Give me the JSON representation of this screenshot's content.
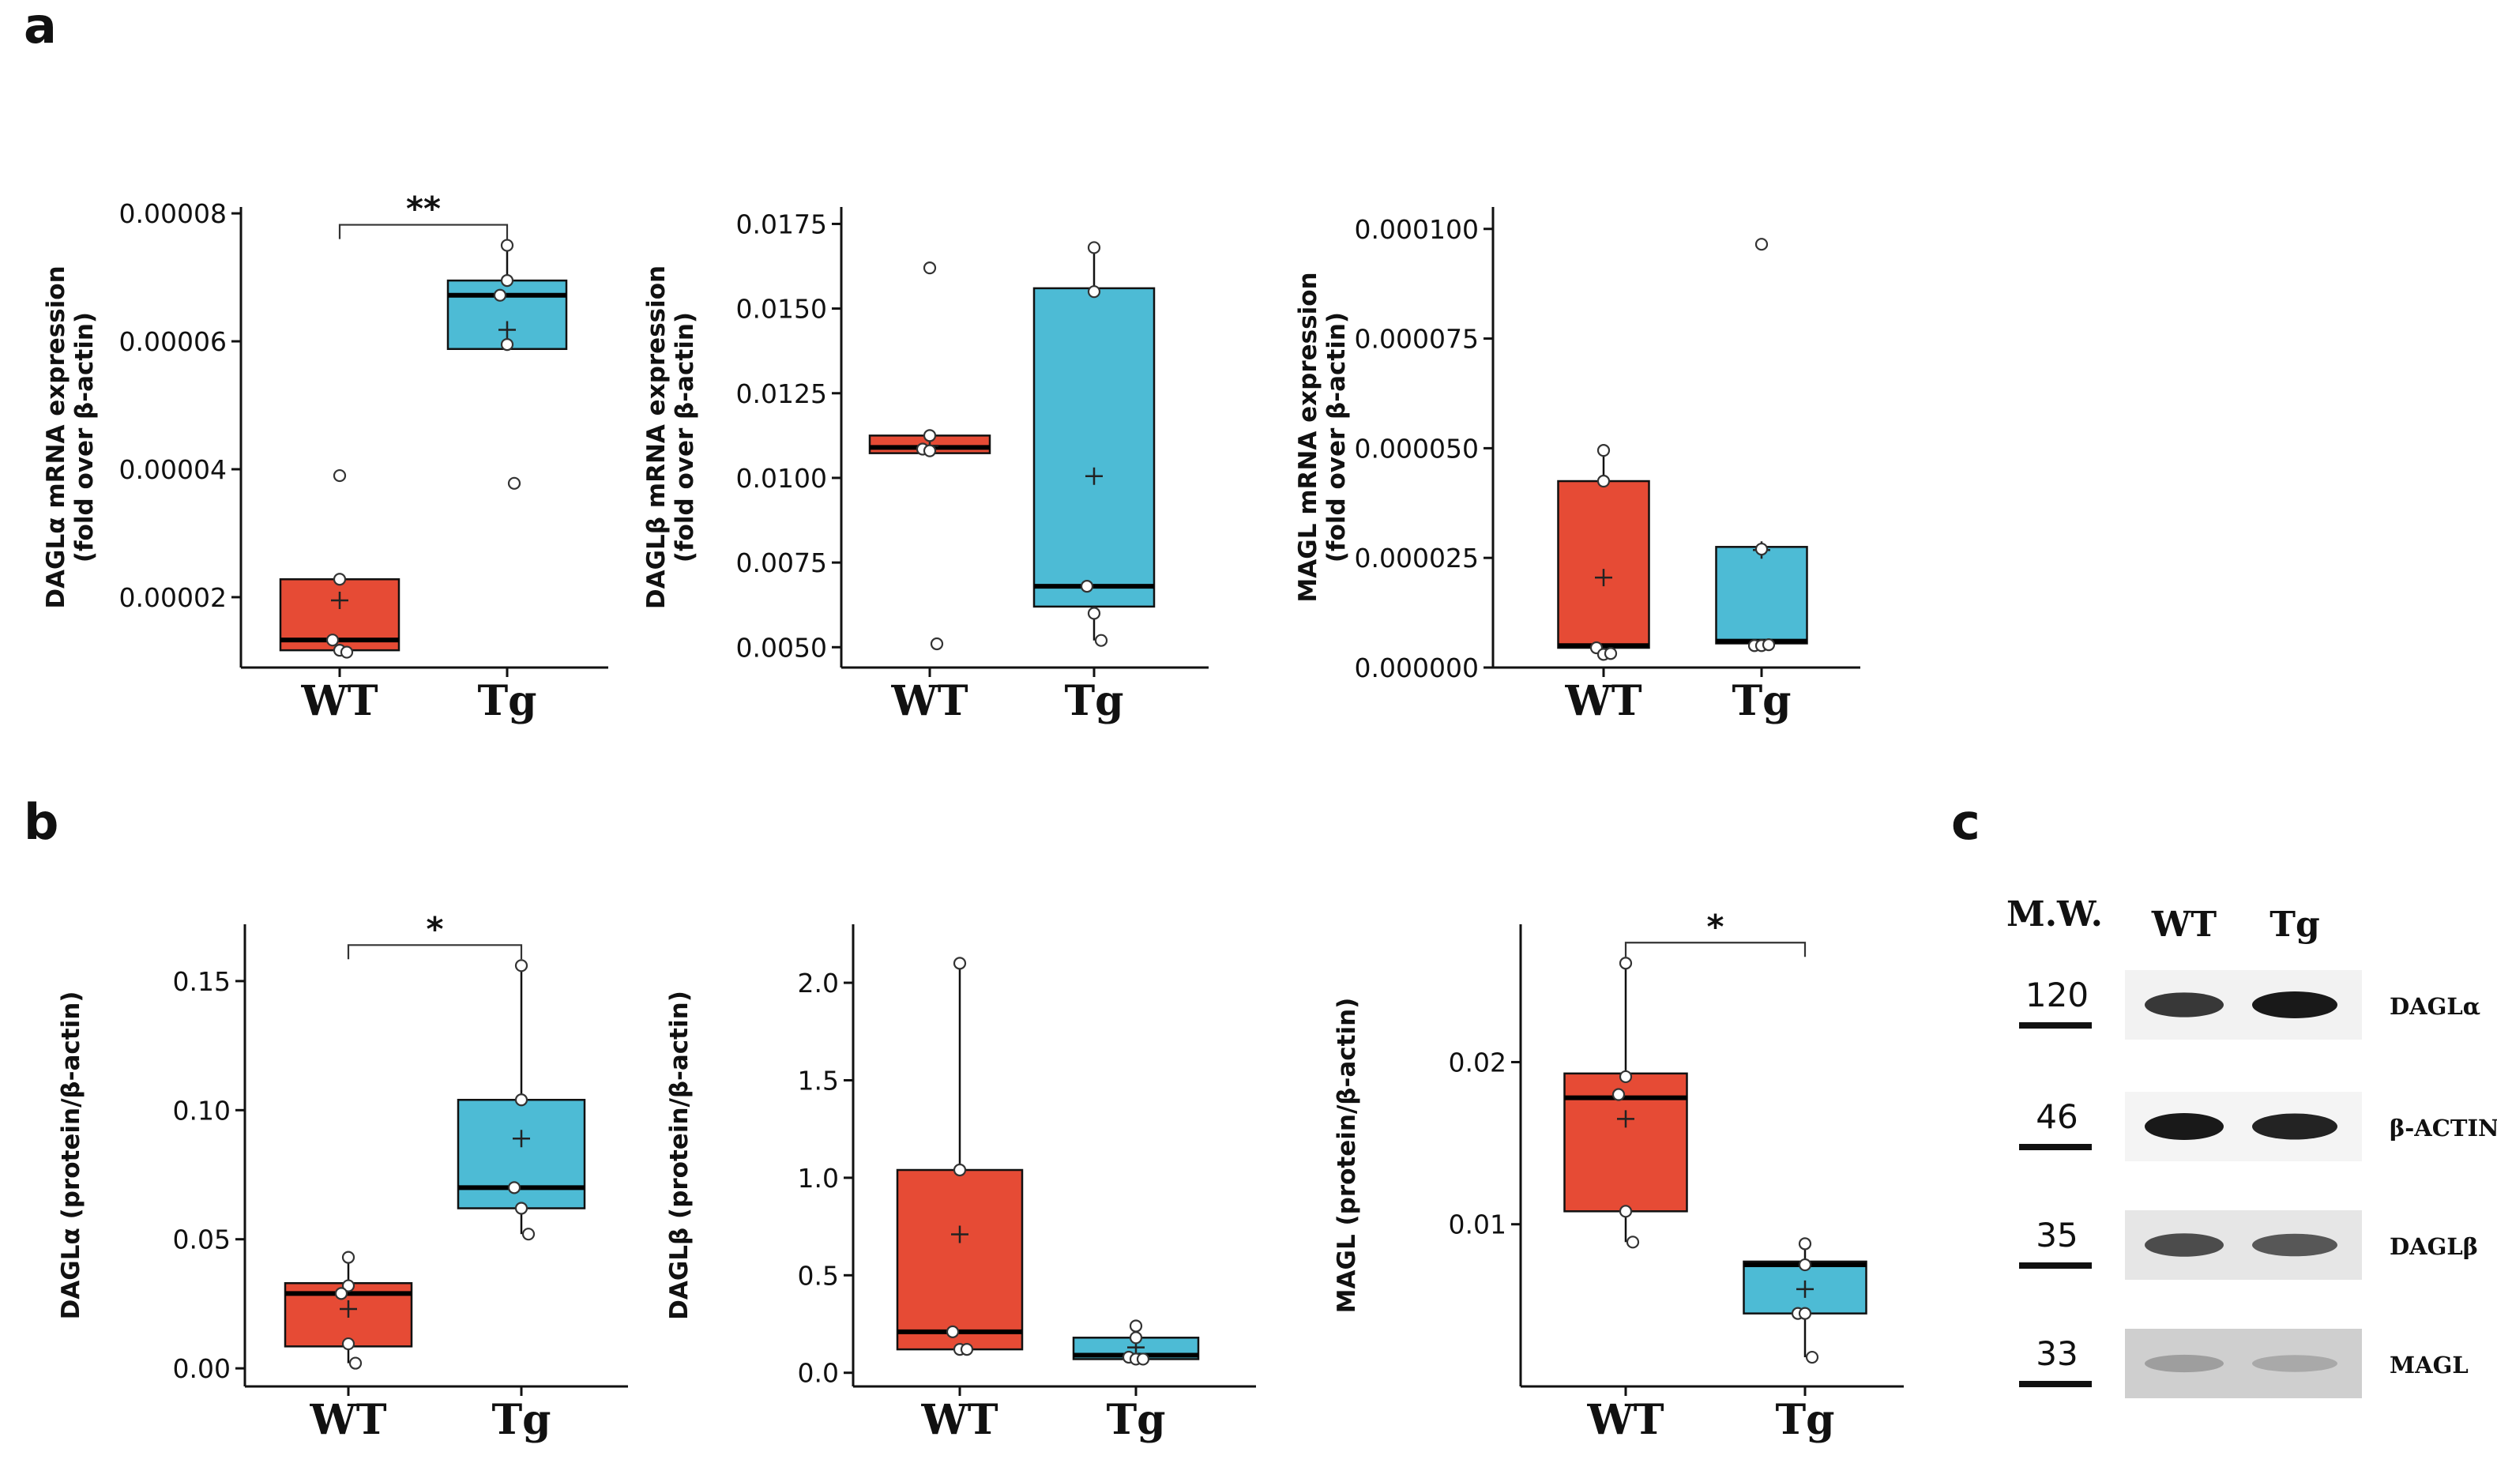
{
  "panel_labels": {
    "a": "a",
    "b": "b",
    "c": "c"
  },
  "colors": {
    "wt": "#E64B35",
    "tg": "#4DBBD5",
    "axis": "#111111"
  },
  "chart_data": [
    {
      "type": "box",
      "id": "a1",
      "ylabel_line1": "DAGLα  mRNA  expression",
      "ylabel_line2": "(fold over β-actin)",
      "categories": [
        "WT",
        "Tg"
      ],
      "ylim": [
        9e-06,
        8.1e-05
      ],
      "yticks": [
        2e-05,
        4e-05,
        6e-05,
        8e-05
      ],
      "ytick_labels": [
        "0.00002",
        "0.00004",
        "0.00006",
        "0.00008"
      ],
      "boxes": [
        {
          "group": "WT",
          "q1": 1.17e-05,
          "median": 1.33e-05,
          "q3": 2.28e-05,
          "mean": 1.95e-05,
          "whisker_low": 1.17e-05,
          "whisker_high": 2.28e-05,
          "points": [
            3.9e-05,
            2.28e-05,
            1.33e-05,
            1.17e-05,
            1.14e-05
          ]
        },
        {
          "group": "Tg",
          "q1": 5.88e-05,
          "median": 6.72e-05,
          "q3": 6.95e-05,
          "mean": 6.18e-05,
          "whisker_low": 5.88e-05,
          "whisker_high": 7.5e-05,
          "points": [
            7.5e-05,
            6.95e-05,
            6.72e-05,
            5.95e-05,
            3.78e-05
          ]
        }
      ],
      "significance": "**"
    },
    {
      "type": "box",
      "id": "a2",
      "ylabel_line1": "DAGLβ  mRNA  expression",
      "ylabel_line2": "(fold over β-actin)",
      "categories": [
        "WT",
        "Tg"
      ],
      "ylim": [
        0.0044,
        0.018
      ],
      "yticks": [
        0.005,
        0.0075,
        0.01,
        0.0125,
        0.015,
        0.0175
      ],
      "ytick_labels": [
        "0.0050",
        "0.0075",
        "0.0100",
        "0.0125",
        "0.0150",
        "0.0175"
      ],
      "boxes": [
        {
          "group": "WT",
          "q1": 0.01073,
          "median": 0.0109,
          "q3": 0.01125,
          "mean": 0.01095,
          "whisker_low": 0.01073,
          "whisker_high": 0.01125,
          "points": [
            0.0162,
            0.01125,
            0.01085,
            0.0108,
            0.0051
          ]
        },
        {
          "group": "Tg",
          "q1": 0.0062,
          "median": 0.0068,
          "q3": 0.0156,
          "mean": 0.01005,
          "whisker_low": 0.0052,
          "whisker_high": 0.0168,
          "points": [
            0.0168,
            0.0155,
            0.0068,
            0.006,
            0.0052
          ]
        }
      ],
      "significance": ""
    },
    {
      "type": "box",
      "id": "a3",
      "ylabel_line1": "MAGL  mRNA  expression",
      "ylabel_line2": "(fold over β-actin)",
      "categories": [
        "WT",
        "Tg"
      ],
      "ylim": [
        0.0,
        0.000105
      ],
      "yticks": [
        0.0,
        2.5e-05,
        5e-05,
        7.5e-05,
        0.0001
      ],
      "ytick_labels": [
        "0.000000",
        "0.000025",
        "0.000050",
        "0.000075",
        "0.000100"
      ],
      "boxes": [
        {
          "group": "WT",
          "q1": 4.5e-06,
          "median": 5e-06,
          "q3": 4.25e-05,
          "mean": 2.05e-05,
          "whisker_low": 3e-06,
          "whisker_high": 4.95e-05,
          "points": [
            4.95e-05,
            4.25e-05,
            4.5e-06,
            3e-06,
            3.2e-06
          ]
        },
        {
          "group": "Tg",
          "q1": 5.5e-06,
          "median": 6e-06,
          "q3": 2.75e-05,
          "mean": 2.68e-05,
          "whisker_low": 5e-06,
          "whisker_high": 2.75e-05,
          "points": [
            9.65e-05,
            2.7e-05,
            5e-06,
            5e-06,
            5.2e-06
          ]
        }
      ],
      "significance": ""
    },
    {
      "type": "box",
      "id": "b1",
      "ylabel_line1": "DAGLα  (protein/β-actin)",
      "ylabel_line2": "",
      "categories": [
        "WT",
        "Tg"
      ],
      "ylim": [
        -0.007,
        0.172
      ],
      "yticks": [
        0.0,
        0.05,
        0.1,
        0.15
      ],
      "ytick_labels": [
        "0.00",
        "0.05",
        "0.10",
        "0.15"
      ],
      "boxes": [
        {
          "group": "WT",
          "q1": 0.0085,
          "median": 0.029,
          "q3": 0.033,
          "mean": 0.023,
          "whisker_low": 0.002,
          "whisker_high": 0.043,
          "points": [
            0.043,
            0.032,
            0.029,
            0.0095,
            0.002
          ]
        },
        {
          "group": "Tg",
          "q1": 0.062,
          "median": 0.07,
          "q3": 0.104,
          "mean": 0.089,
          "whisker_low": 0.052,
          "whisker_high": 0.156,
          "points": [
            0.156,
            0.104,
            0.07,
            0.062,
            0.052
          ]
        }
      ],
      "significance": "*"
    },
    {
      "type": "box",
      "id": "b2",
      "ylabel_line1": "DAGLβ  (protein/β-actin)",
      "ylabel_line2": "",
      "categories": [
        "WT",
        "Tg"
      ],
      "ylim": [
        -0.07,
        2.3
      ],
      "yticks": [
        0.0,
        0.5,
        1.0,
        1.5,
        2.0
      ],
      "ytick_labels": [
        "0.0",
        "0.5",
        "1.0",
        "1.5",
        "2.0"
      ],
      "boxes": [
        {
          "group": "WT",
          "q1": 0.12,
          "median": 0.21,
          "q3": 1.04,
          "mean": 0.71,
          "whisker_low": 0.12,
          "whisker_high": 2.1,
          "points": [
            2.1,
            1.04,
            0.21,
            0.12,
            0.12
          ]
        },
        {
          "group": "Tg",
          "q1": 0.07,
          "median": 0.09,
          "q3": 0.18,
          "mean": 0.13,
          "whisker_low": 0.07,
          "whisker_high": 0.24,
          "points": [
            0.24,
            0.18,
            0.08,
            0.07,
            0.07
          ]
        }
      ],
      "significance": ""
    },
    {
      "type": "box",
      "id": "b3",
      "ylabel_line1": "MAGL  (protein/β-actin)",
      "ylabel_line2": "",
      "categories": [
        "WT",
        "Tg"
      ],
      "ylim": [
        0.0,
        0.0285
      ],
      "yticks": [
        0.01,
        0.02
      ],
      "ytick_labels": [
        "0.01",
        "0.02"
      ],
      "boxes": [
        {
          "group": "WT",
          "q1": 0.0108,
          "median": 0.0178,
          "q3": 0.0193,
          "mean": 0.0165,
          "whisker_low": 0.0089,
          "whisker_high": 0.0261,
          "points": [
            0.0261,
            0.0191,
            0.018,
            0.0108,
            0.0089
          ]
        },
        {
          "group": "Tg",
          "q1": 0.0045,
          "median": 0.0075,
          "q3": 0.0077,
          "mean": 0.006,
          "whisker_low": 0.0018,
          "whisker_high": 0.0088,
          "points": [
            0.0088,
            0.0075,
            0.0045,
            0.0045,
            0.0018
          ]
        }
      ],
      "significance": "*"
    }
  ],
  "blot": {
    "mw_header": "M.W.",
    "lanes": [
      "WT",
      "Tg"
    ],
    "rows": [
      {
        "mw": "120",
        "name": "DAGLα",
        "wt_intensity": 0.85,
        "tg_intensity": 1.0
      },
      {
        "mw": "46",
        "name": "β-ACTIN",
        "wt_intensity": 1.0,
        "tg_intensity": 0.95
      },
      {
        "mw": "35",
        "name": "DAGLβ",
        "wt_intensity": 0.75,
        "tg_intensity": 0.7
      },
      {
        "mw": "33",
        "name": "MAGL",
        "wt_intensity": 0.35,
        "tg_intensity": 0.3
      }
    ]
  }
}
